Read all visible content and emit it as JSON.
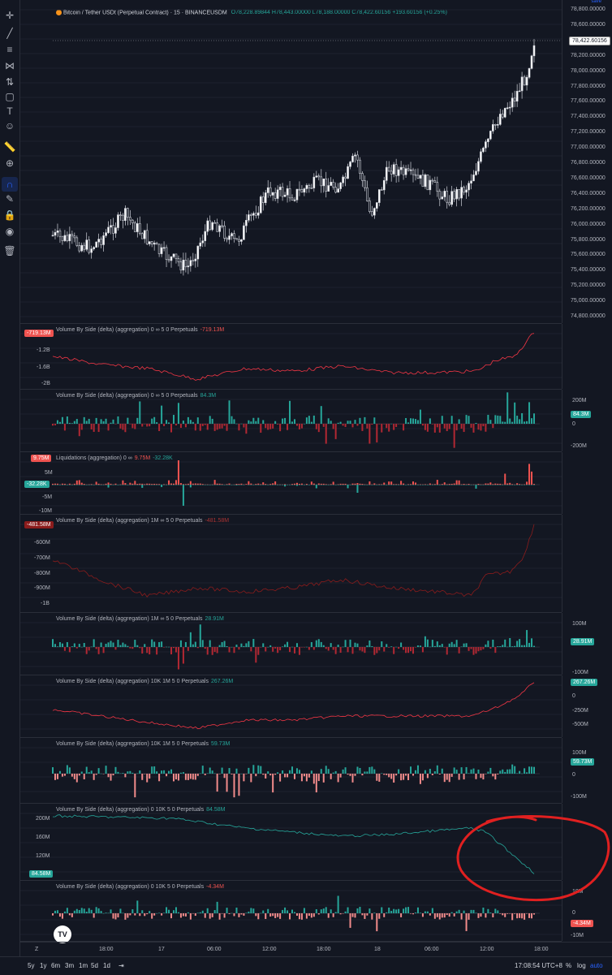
{
  "header": {
    "symbol": "Bitcoin / Tether USDt (Perpetual Contract) · 15 · BINANCEUSDM",
    "ohlc": "O78,228.89844 H78,443.00000 L78,188.00000 C78,422.60156 +193.60156 (+0.25%)",
    "save": "save"
  },
  "price_axis": {
    "ticks": [
      "78,800.00000",
      "78,600.00000",
      "78,400.00000",
      "78,200.00000",
      "78,000.00000",
      "77,800.00000",
      "77,600.00000",
      "77,400.00000",
      "77,200.00000",
      "77,000.00000",
      "76,800.00000",
      "76,600.00000",
      "76,400.00000",
      "76,200.00000",
      "76,000.00000",
      "75,800.00000",
      "75,600.00000",
      "75,400.00000",
      "75,200.00000",
      "75,000.00000",
      "74,800.00000"
    ],
    "last_price": "78,422.60156"
  },
  "panes": {
    "p1": {
      "label": "Volume By Side (delta) (aggregation) 0 ∞ 5 0 Perpetuals",
      "value": "-719.13M",
      "left_value": "-719.13M",
      "ticks": [
        "-1.2B",
        "-1.6B",
        "-2B"
      ]
    },
    "p2": {
      "label": "Volume By Side (delta) (aggregation) 0 ∞ 5 0 Perpetuals",
      "value": "84.3M",
      "badge": "84.3M",
      "ticks": [
        "200M",
        "0",
        "-200M"
      ]
    },
    "p3": {
      "label": "Liquidations (aggregation) 0 ∞",
      "value_a": "9.75M",
      "value_b": "-32.28K",
      "left_a": "9.75M",
      "left_b": "-32.28K",
      "ticks": [
        "5M",
        "-5M",
        "-10M"
      ]
    },
    "p4": {
      "label": "Volume By Side (delta) (aggregation) 1M ∞ 5 0 Perpetuals",
      "value": "-481.58M",
      "left_value": "-481.58M",
      "ticks": [
        "-600M",
        "-700M",
        "-800M",
        "-900M",
        "-1B"
      ]
    },
    "p5": {
      "label": "Volume By Side (delta) (aggregation) 1M ∞ 5 0 Perpetuals",
      "value": "28.91M",
      "badge": "28.91M",
      "ticks": [
        "100M",
        "-100M"
      ]
    },
    "p6": {
      "label": "Volume By Side (delta) (aggregation) 10K 1M 5 0 Perpetuals",
      "value": "267.26M",
      "badge": "267.26M",
      "ticks": [
        "0",
        "-250M",
        "-500M"
      ]
    },
    "p7": {
      "label": "Volume By Side (delta) (aggregation) 10K 1M 5 0 Perpetuals",
      "value": "59.73M",
      "badge": "59.73M",
      "ticks": [
        "100M",
        "0",
        "-100M"
      ]
    },
    "p8": {
      "label": "Volume By Side (delta) (aggregation) 0 10K 5 0 Perpetuals",
      "value": "84.58M",
      "left_value": "84.58M",
      "ticks": [
        "200M",
        "160M",
        "120M",
        "80M"
      ]
    },
    "p9": {
      "label": "Volume By Side (delta) (aggregation) 0 10K 5 0 Perpetuals",
      "value": "-4.34M",
      "badge": "-4.34M",
      "ticks": [
        "10M",
        "0",
        "-10M"
      ]
    }
  },
  "time_axis": [
    "18:00",
    "17",
    "06:00",
    "12:00",
    "18:00",
    "18",
    "06:00",
    "12:00",
    "18:00"
  ],
  "bottom_bar": {
    "ranges": [
      "5y",
      "1y",
      "6m",
      "3m",
      "1m",
      "5d",
      "1d"
    ],
    "clock": "17:08:54 UTC+8",
    "percent": "%",
    "log": "log",
    "auto": "auto"
  },
  "colors": {
    "up": "#26a69a",
    "down": "#ef5350",
    "line": "#f23645",
    "teal": "#26a69a",
    "annotation": "#e02020"
  }
}
